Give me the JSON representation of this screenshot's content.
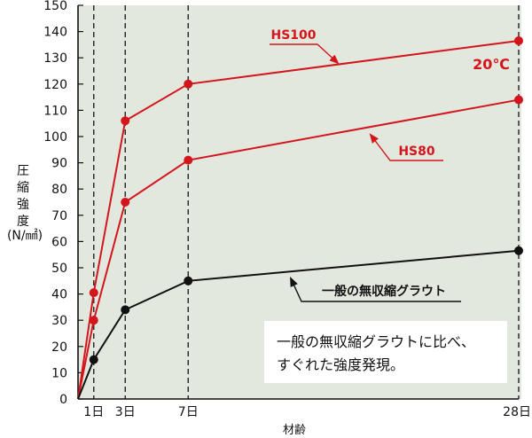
{
  "chart_data": {
    "type": "line",
    "x": [
      0,
      1,
      3,
      7,
      28
    ],
    "xticks": [
      {
        "value": 1,
        "label": "1日"
      },
      {
        "value": 3,
        "label": "3日"
      },
      {
        "value": 7,
        "label": "7日"
      },
      {
        "value": 28,
        "label": "28日"
      }
    ],
    "xlabel": "材齢",
    "ylabel_chars": [
      "圧",
      "縮",
      "強",
      "度"
    ],
    "ylabel_unit": "(N/㎟)",
    "ylim": [
      0,
      150
    ],
    "yticks": [
      0,
      10,
      20,
      30,
      40,
      50,
      60,
      70,
      80,
      90,
      100,
      110,
      120,
      130,
      140,
      150
    ],
    "condition": "20℃",
    "series": [
      {
        "name": "HS100",
        "color": "#d3151c",
        "values": [
          0,
          40.5,
          106,
          120,
          136.5
        ]
      },
      {
        "name": "HS80",
        "color": "#d3151c",
        "values": [
          0,
          30,
          75,
          91,
          114
        ]
      },
      {
        "name": "一般の無収縮グラウト",
        "color": "#111111",
        "values": [
          0,
          15,
          34,
          45,
          56.5
        ]
      }
    ],
    "note_lines": [
      "一般の無収縮グラウトに比べ、",
      "すぐれた強度発現。"
    ],
    "grid": false,
    "background": "#e3e8df"
  }
}
